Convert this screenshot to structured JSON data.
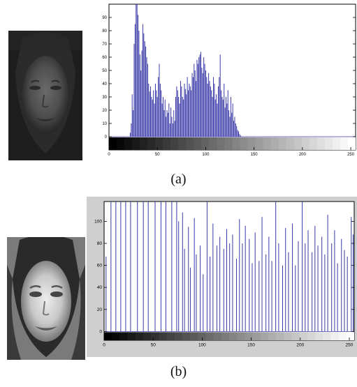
{
  "captions": {
    "a": "(a)",
    "b": "(b)"
  },
  "chart_data": [
    {
      "type": "bar",
      "title": "",
      "xlabel": "",
      "ylabel": "",
      "xlim": [
        0,
        255
      ],
      "ylim": [
        -10,
        100
      ],
      "xticks": [
        0,
        50,
        100,
        150,
        200,
        250
      ],
      "yticks": [
        0,
        10,
        20,
        30,
        40,
        50,
        60,
        70,
        80,
        90
      ],
      "bar_color": "#3a3aa8",
      "background": "#ffffff",
      "grid": false,
      "x": [
        22,
        23,
        24,
        25,
        26,
        27,
        28,
        29,
        30,
        31,
        32,
        33,
        34,
        35,
        36,
        37,
        38,
        39,
        40,
        41,
        42,
        43,
        44,
        45,
        46,
        47,
        48,
        49,
        50,
        51,
        52,
        53,
        54,
        55,
        56,
        57,
        58,
        59,
        60,
        61,
        62,
        63,
        64,
        65,
        66,
        67,
        68,
        69,
        70,
        71,
        72,
        73,
        74,
        75,
        76,
        77,
        78,
        79,
        80,
        81,
        82,
        83,
        84,
        85,
        86,
        87,
        88,
        89,
        90,
        91,
        92,
        93,
        94,
        95,
        96,
        97,
        98,
        99,
        100,
        101,
        102,
        103,
        104,
        105,
        106,
        107,
        108,
        109,
        110,
        111,
        112,
        113,
        114,
        115,
        116,
        117,
        118,
        119,
        120,
        121,
        122,
        123,
        124,
        125,
        126,
        127,
        128,
        129,
        130,
        131,
        132,
        133,
        134,
        135,
        136
      ],
      "values": [
        3,
        10,
        32,
        20,
        70,
        85,
        100,
        100,
        92,
        80,
        62,
        50,
        65,
        85,
        78,
        72,
        68,
        60,
        55,
        40,
        34,
        38,
        30,
        28,
        35,
        25,
        40,
        35,
        30,
        45,
        55,
        40,
        35,
        25,
        30,
        20,
        28,
        15,
        20,
        18,
        25,
        10,
        22,
        15,
        10,
        20,
        12,
        30,
        38,
        35,
        30,
        25,
        42,
        38,
        30,
        28,
        40,
        36,
        32,
        45,
        35,
        40,
        38,
        35,
        48,
        45,
        55,
        50,
        42,
        58,
        55,
        60,
        62,
        64,
        52,
        48,
        60,
        55,
        50,
        45,
        40,
        48,
        42,
        38,
        35,
        30,
        45,
        40,
        28,
        32,
        25,
        38,
        45,
        62,
        35,
        30,
        28,
        40,
        22,
        30,
        25,
        35,
        20,
        15,
        30,
        18,
        25,
        12,
        15,
        10,
        8,
        5,
        4,
        2,
        1
      ]
    },
    {
      "type": "bar",
      "title": "",
      "xlabel": "",
      "ylabel": "",
      "xlim": [
        0,
        255
      ],
      "ylim": [
        -8,
        118
      ],
      "xticks": [
        0,
        50,
        100,
        150,
        200,
        250
      ],
      "yticks": [
        0,
        20,
        40,
        60,
        80,
        100
      ],
      "bar_color": "#3a3aa8",
      "background": "#ffffff",
      "grid": false,
      "x": [
        2,
        7,
        12,
        17,
        22,
        27,
        34,
        40,
        45,
        52,
        58,
        63,
        69,
        74,
        76,
        80,
        82,
        86,
        88,
        92,
        94,
        98,
        101,
        105,
        108,
        111,
        115,
        118,
        122,
        125,
        128,
        131,
        135,
        138,
        141,
        144,
        148,
        151,
        154,
        158,
        161,
        165,
        168,
        171,
        175,
        178,
        182,
        185,
        188,
        192,
        195,
        198,
        202,
        205,
        208,
        212,
        215,
        218,
        222,
        225,
        228,
        232,
        235,
        238,
        242,
        245,
        248,
        252,
        254
      ],
      "values": [
        68,
        118,
        118,
        118,
        118,
        118,
        118,
        118,
        118,
        118,
        118,
        118,
        118,
        118,
        100,
        108,
        75,
        95,
        58,
        103,
        70,
        78,
        52,
        118,
        68,
        98,
        78,
        86,
        75,
        93,
        80,
        88,
        66,
        102,
        80,
        96,
        84,
        62,
        90,
        64,
        104,
        70,
        86,
        64,
        118,
        80,
        60,
        94,
        72,
        98,
        60,
        82,
        118,
        80,
        92,
        72,
        96,
        78,
        86,
        70,
        106,
        80,
        92,
        62,
        84,
        74,
        68,
        104,
        88
      ]
    }
  ]
}
